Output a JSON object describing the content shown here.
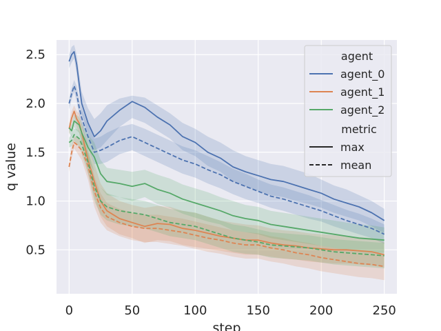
{
  "chart_data": {
    "type": "line",
    "xlabel": "step",
    "ylabel": "q value",
    "xlim": [
      -10,
      260
    ],
    "ylim": [
      0.05,
      2.65
    ],
    "xticks": [
      0,
      50,
      100,
      150,
      200,
      250
    ],
    "yticks": [
      0.5,
      1.0,
      1.5,
      2.0,
      2.5
    ],
    "xtick_labels": [
      "0",
      "50",
      "100",
      "150",
      "200",
      "250"
    ],
    "ytick_labels": [
      "0.5",
      "1.0",
      "1.5",
      "2.0",
      "2.5"
    ],
    "grid": true,
    "background": "#eaeaf2",
    "legend_placement": "top-right",
    "legend": {
      "hue_title": "agent",
      "style_title": "metric",
      "hue_entries": [
        "agent_0",
        "agent_1",
        "agent_2"
      ],
      "style_entries": [
        "max",
        "mean"
      ]
    },
    "colors": {
      "agent_0": "#4c72b0",
      "agent_1": "#dd8452",
      "agent_2": "#55a868"
    },
    "x": [
      0,
      2,
      4,
      6,
      8,
      10,
      15,
      20,
      25,
      30,
      40,
      50,
      60,
      70,
      80,
      90,
      100,
      110,
      120,
      130,
      140,
      150,
      160,
      170,
      180,
      190,
      200,
      210,
      220,
      230,
      240,
      250
    ],
    "series": [
      {
        "name": "agent_0",
        "metric": "max",
        "values": [
          2.43,
          2.5,
          2.53,
          2.4,
          2.2,
          2.0,
          1.8,
          1.66,
          1.72,
          1.82,
          1.93,
          2.02,
          1.96,
          1.86,
          1.78,
          1.66,
          1.6,
          1.5,
          1.44,
          1.35,
          1.3,
          1.26,
          1.22,
          1.2,
          1.16,
          1.12,
          1.08,
          1.02,
          0.98,
          0.94,
          0.88,
          0.8
        ],
        "band_upper": [
          2.5,
          2.58,
          2.6,
          2.5,
          2.3,
          2.12,
          1.95,
          1.84,
          1.9,
          1.98,
          2.05,
          2.08,
          2.06,
          1.98,
          1.9,
          1.8,
          1.74,
          1.66,
          1.6,
          1.52,
          1.46,
          1.42,
          1.38,
          1.36,
          1.32,
          1.28,
          1.22,
          1.16,
          1.12,
          1.06,
          1.0,
          0.92
        ],
        "band_lower": [
          2.36,
          2.42,
          2.46,
          2.3,
          2.1,
          1.9,
          1.68,
          1.52,
          1.55,
          1.62,
          1.76,
          1.85,
          1.8,
          1.72,
          1.64,
          1.52,
          1.46,
          1.36,
          1.3,
          1.2,
          1.15,
          1.1,
          1.06,
          1.04,
          1.0,
          0.97,
          0.93,
          0.88,
          0.84,
          0.8,
          0.74,
          0.67
        ]
      },
      {
        "name": "agent_0",
        "metric": "mean",
        "values": [
          2.0,
          2.1,
          2.18,
          2.1,
          1.96,
          1.85,
          1.66,
          1.5,
          1.52,
          1.55,
          1.62,
          1.66,
          1.6,
          1.54,
          1.48,
          1.42,
          1.38,
          1.32,
          1.27,
          1.2,
          1.15,
          1.1,
          1.05,
          1.02,
          0.98,
          0.94,
          0.9,
          0.85,
          0.8,
          0.76,
          0.72,
          0.66
        ],
        "band_upper": [
          2.06,
          2.16,
          2.24,
          2.18,
          2.04,
          1.94,
          1.78,
          1.64,
          1.66,
          1.7,
          1.76,
          1.79,
          1.74,
          1.68,
          1.62,
          1.56,
          1.52,
          1.46,
          1.4,
          1.33,
          1.28,
          1.22,
          1.17,
          1.14,
          1.1,
          1.06,
          1.01,
          0.96,
          0.91,
          0.87,
          0.82,
          0.76
        ],
        "band_lower": [
          1.94,
          2.04,
          2.12,
          2.02,
          1.88,
          1.76,
          1.55,
          1.38,
          1.38,
          1.4,
          1.48,
          1.52,
          1.46,
          1.4,
          1.34,
          1.28,
          1.24,
          1.18,
          1.13,
          1.07,
          1.02,
          0.98,
          0.93,
          0.9,
          0.86,
          0.82,
          0.79,
          0.74,
          0.7,
          0.66,
          0.62,
          0.56
        ]
      },
      {
        "name": "agent_1",
        "metric": "max",
        "values": [
          1.74,
          1.85,
          1.92,
          1.84,
          1.8,
          1.7,
          1.42,
          1.2,
          1.0,
          0.9,
          0.82,
          0.78,
          0.74,
          0.77,
          0.76,
          0.72,
          0.7,
          0.67,
          0.64,
          0.62,
          0.6,
          0.6,
          0.57,
          0.55,
          0.54,
          0.52,
          0.51,
          0.5,
          0.5,
          0.49,
          0.48,
          0.45
        ],
        "band_upper": [
          1.8,
          1.92,
          1.98,
          1.92,
          1.9,
          1.8,
          1.58,
          1.38,
          1.18,
          1.08,
          1.0,
          0.96,
          0.93,
          0.95,
          0.94,
          0.9,
          0.88,
          0.84,
          0.8,
          0.78,
          0.76,
          0.75,
          0.72,
          0.7,
          0.69,
          0.67,
          0.66,
          0.65,
          0.64,
          0.63,
          0.62,
          0.58
        ],
        "band_lower": [
          1.68,
          1.78,
          1.86,
          1.76,
          1.7,
          1.6,
          1.28,
          1.04,
          0.84,
          0.74,
          0.66,
          0.62,
          0.57,
          0.6,
          0.59,
          0.55,
          0.53,
          0.51,
          0.49,
          0.47,
          0.45,
          0.45,
          0.43,
          0.41,
          0.4,
          0.38,
          0.37,
          0.36,
          0.36,
          0.35,
          0.34,
          0.32
        ]
      },
      {
        "name": "agent_1",
        "metric": "mean",
        "values": [
          1.35,
          1.5,
          1.6,
          1.58,
          1.55,
          1.52,
          1.36,
          1.1,
          0.93,
          0.84,
          0.78,
          0.74,
          0.72,
          0.72,
          0.7,
          0.68,
          0.65,
          0.62,
          0.6,
          0.57,
          0.55,
          0.55,
          0.52,
          0.5,
          0.47,
          0.45,
          0.42,
          0.4,
          0.38,
          0.36,
          0.35,
          0.33
        ],
        "band_upper": [
          1.4,
          1.56,
          1.66,
          1.66,
          1.64,
          1.62,
          1.5,
          1.26,
          1.08,
          0.98,
          0.92,
          0.88,
          0.86,
          0.86,
          0.84,
          0.82,
          0.79,
          0.76,
          0.73,
          0.7,
          0.68,
          0.67,
          0.64,
          0.62,
          0.59,
          0.57,
          0.54,
          0.52,
          0.5,
          0.48,
          0.47,
          0.45
        ],
        "band_lower": [
          1.3,
          1.44,
          1.54,
          1.5,
          1.46,
          1.42,
          1.22,
          0.94,
          0.78,
          0.7,
          0.64,
          0.6,
          0.58,
          0.58,
          0.56,
          0.54,
          0.51,
          0.48,
          0.46,
          0.43,
          0.41,
          0.41,
          0.38,
          0.36,
          0.33,
          0.31,
          0.28,
          0.26,
          0.24,
          0.22,
          0.21,
          0.19
        ]
      },
      {
        "name": "agent_2",
        "metric": "max",
        "values": [
          1.75,
          1.72,
          1.82,
          1.8,
          1.78,
          1.7,
          1.55,
          1.45,
          1.28,
          1.2,
          1.18,
          1.15,
          1.18,
          1.12,
          1.08,
          1.02,
          0.98,
          0.94,
          0.9,
          0.85,
          0.82,
          0.8,
          0.76,
          0.74,
          0.72,
          0.7,
          0.68,
          0.66,
          0.64,
          0.62,
          0.61,
          0.6
        ],
        "band_upper": [
          1.8,
          1.78,
          1.88,
          1.88,
          1.86,
          1.8,
          1.68,
          1.6,
          1.42,
          1.34,
          1.32,
          1.3,
          1.32,
          1.27,
          1.23,
          1.17,
          1.13,
          1.09,
          1.04,
          1.0,
          0.96,
          0.94,
          0.9,
          0.88,
          0.86,
          0.84,
          0.82,
          0.8,
          0.78,
          0.76,
          0.75,
          0.73
        ],
        "band_lower": [
          1.7,
          1.66,
          1.76,
          1.72,
          1.7,
          1.6,
          1.42,
          1.3,
          1.14,
          1.06,
          1.04,
          1.0,
          1.04,
          0.97,
          0.93,
          0.87,
          0.83,
          0.79,
          0.76,
          0.7,
          0.68,
          0.66,
          0.62,
          0.6,
          0.58,
          0.56,
          0.54,
          0.52,
          0.5,
          0.48,
          0.47,
          0.47
        ]
      },
      {
        "name": "agent_2",
        "metric": "mean",
        "values": [
          1.6,
          1.62,
          1.68,
          1.66,
          1.64,
          1.58,
          1.4,
          1.15,
          1.0,
          0.94,
          0.9,
          0.88,
          0.86,
          0.82,
          0.78,
          0.76,
          0.74,
          0.7,
          0.66,
          0.62,
          0.6,
          0.58,
          0.55,
          0.54,
          0.53,
          0.52,
          0.5,
          0.48,
          0.47,
          0.46,
          0.45,
          0.44
        ],
        "band_upper": [
          1.65,
          1.68,
          1.74,
          1.74,
          1.72,
          1.68,
          1.52,
          1.3,
          1.14,
          1.08,
          1.04,
          1.02,
          1.0,
          0.96,
          0.92,
          0.9,
          0.88,
          0.84,
          0.8,
          0.76,
          0.74,
          0.71,
          0.68,
          0.67,
          0.66,
          0.65,
          0.63,
          0.61,
          0.6,
          0.59,
          0.58,
          0.57
        ],
        "band_lower": [
          1.55,
          1.56,
          1.62,
          1.58,
          1.56,
          1.48,
          1.28,
          1.0,
          0.86,
          0.8,
          0.76,
          0.74,
          0.72,
          0.68,
          0.64,
          0.62,
          0.6,
          0.56,
          0.52,
          0.48,
          0.46,
          0.45,
          0.42,
          0.41,
          0.4,
          0.39,
          0.37,
          0.35,
          0.34,
          0.33,
          0.32,
          0.31
        ]
      }
    ]
  }
}
